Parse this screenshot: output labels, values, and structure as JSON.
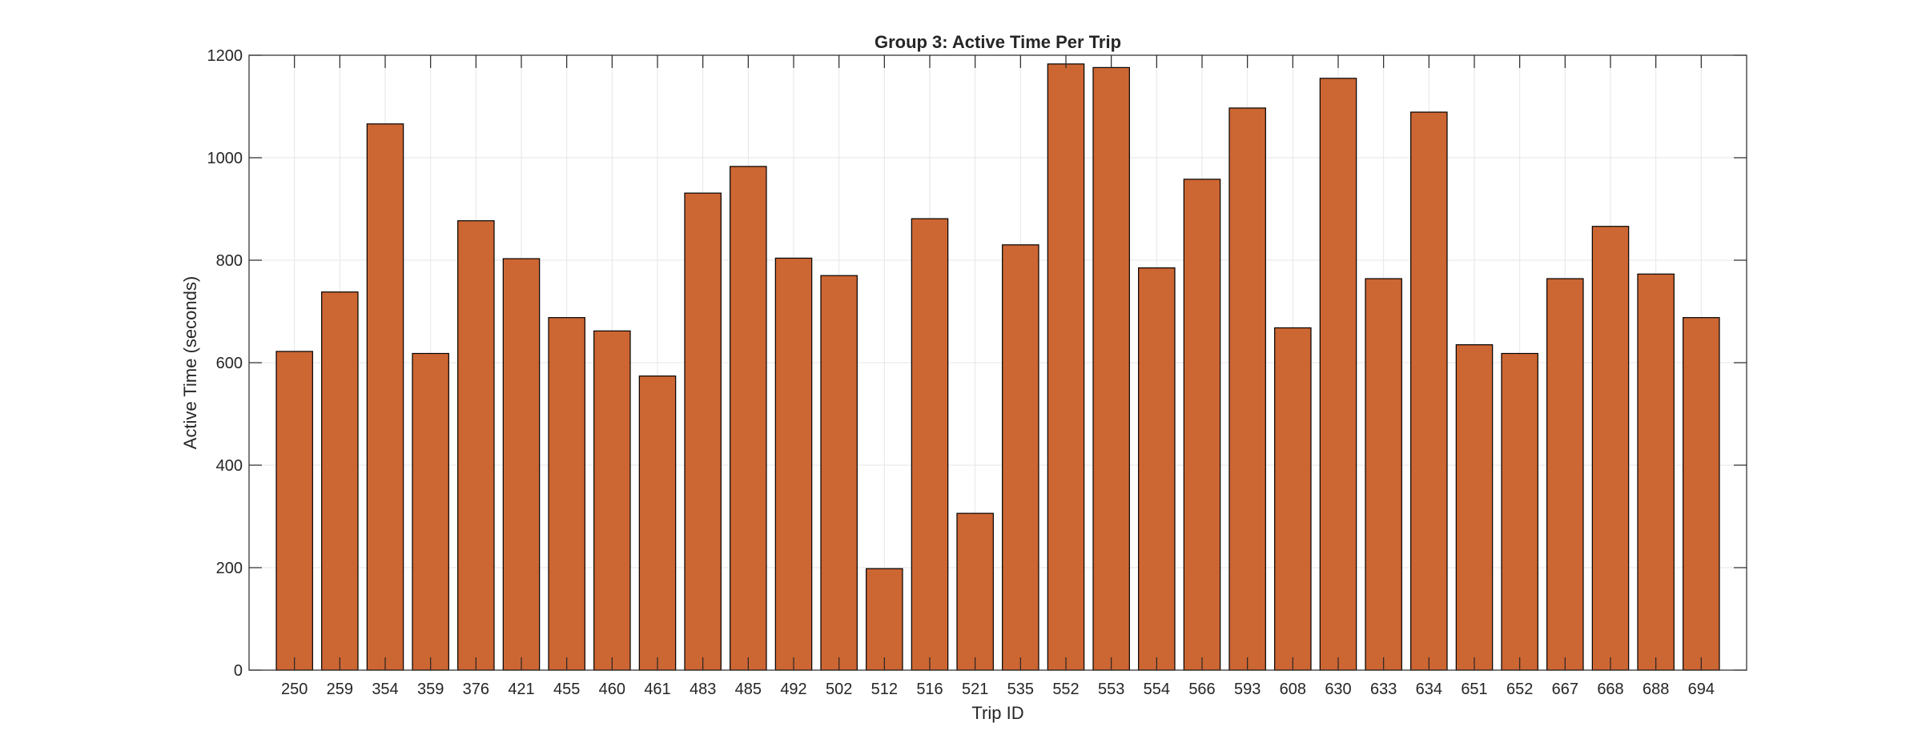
{
  "chart_data": {
    "type": "bar",
    "title": "Group 3: Active Time Per Trip",
    "xlabel": "Trip ID",
    "ylabel": "Active Time (seconds)",
    "ylim": [
      0,
      1200
    ],
    "yticks": [
      0,
      200,
      400,
      600,
      800,
      1000,
      1200
    ],
    "grid": true,
    "legend": "none",
    "bar_color": "#cc6633",
    "bar_edge_color": "#000000",
    "categories": [
      "250",
      "259",
      "354",
      "359",
      "376",
      "421",
      "455",
      "460",
      "461",
      "483",
      "485",
      "492",
      "502",
      "512",
      "516",
      "521",
      "535",
      "552",
      "553",
      "554",
      "566",
      "593",
      "608",
      "630",
      "633",
      "634",
      "651",
      "652",
      "667",
      "668",
      "688",
      "694"
    ],
    "values": [
      622,
      738,
      1066,
      618,
      877,
      803,
      688,
      662,
      574,
      931,
      983,
      804,
      770,
      198,
      881,
      306,
      830,
      1183,
      1176,
      785,
      958,
      1097,
      668,
      1155,
      764,
      1089,
      635,
      618,
      764,
      866,
      773,
      688
    ]
  }
}
